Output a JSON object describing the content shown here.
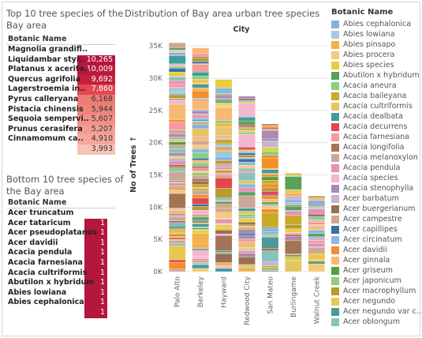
{
  "top_panel": {
    "title_line1": "Top 10 tree species of the",
    "title_line2": "Bay area",
    "column_header": "Botanic Name",
    "rows": [
      {
        "name": "Magnolia grandifl..",
        "value": "10,265",
        "color": "#b5163b",
        "text_color": "#ffffff"
      },
      {
        "name": "Liquidambar styr..",
        "value": "10,009",
        "color": "#b8193c",
        "text_color": "#ffffff"
      },
      {
        "name": "Platanus x acerifo..",
        "value": "9,692",
        "color": "#c41f3f",
        "text_color": "#ffffff"
      },
      {
        "name": "Quercus agrifolia",
        "value": "7,860",
        "color": "#e2484e",
        "text_color": "#ffffff"
      },
      {
        "name": "Lagerstroemia in..",
        "value": "6,168",
        "color": "#ee7b73",
        "text_color": "#333333"
      },
      {
        "name": "Pyrus calleryana",
        "value": "5,944",
        "color": "#f0847b",
        "text_color": "#333333"
      },
      {
        "name": "Pistacia chinensis",
        "value": "5,607",
        "color": "#f29186",
        "text_color": "#333333"
      },
      {
        "name": "Sequoia sempervi..",
        "value": "5,207",
        "color": "#f39d92",
        "text_color": "#333333"
      },
      {
        "name": "Prunus cerasifera",
        "value": "4,910",
        "color": "#f5a79c",
        "text_color": "#333333"
      },
      {
        "name": "Cinnamomum ca..",
        "value": "3,993",
        "color": "#f8c2b8",
        "text_color": "#333333"
      }
    ]
  },
  "bottom_panel": {
    "title_line1": "Bottom 10 tree species of",
    "title_line2": "the Bay area",
    "column_header": "Botanic Name",
    "cell_color": "#b5163b",
    "rows": [
      {
        "name": "Acer truncatum",
        "value": "1"
      },
      {
        "name": "Acer tataricum",
        "value": "1"
      },
      {
        "name": "Acer pseudoplatanus",
        "value": "1"
      },
      {
        "name": "Acer davidii",
        "value": "1"
      },
      {
        "name": "Acacia pendula",
        "value": "1"
      },
      {
        "name": "Acacia farnesiana",
        "value": "1"
      },
      {
        "name": "Acacia cultriformis",
        "value": "1"
      },
      {
        "name": "Abutilon x hybridum",
        "value": "1"
      },
      {
        "name": "Abies lowiana",
        "value": "1"
      },
      {
        "name": "Abies cephalonica",
        "value": "1"
      }
    ]
  },
  "chart_data": {
    "type": "bar",
    "stacked": true,
    "title": "Distribution of Bay area urban tree species",
    "column_header": "City",
    "ylabel": "No of Trees ↑",
    "ylim": [
      0,
      36000
    ],
    "yticks": [
      "0K",
      "5K",
      "10K",
      "15K",
      "20K",
      "25K",
      "30K",
      "35K"
    ],
    "categories": [
      "Palo Alto",
      "Berkeley",
      "Hayward",
      "Redwood City",
      "San Mateo",
      "Burlingame",
      "Walnut Creek"
    ],
    "values": [
      35500,
      34700,
      29800,
      27200,
      22900,
      15300,
      11700
    ],
    "grid": true
  },
  "legend": {
    "title": "Botanic Name",
    "items": [
      {
        "label": "Abies cephalonica",
        "color": "#8ab2d6"
      },
      {
        "label": "Abies lowiana",
        "color": "#a8c8e0"
      },
      {
        "label": "Abies pinsapo",
        "color": "#f4b24a"
      },
      {
        "label": "Abies procera",
        "color": "#f7c97a"
      },
      {
        "label": "Abies species",
        "color": "#e8cf3a"
      },
      {
        "label": "Abutilon x hybridum",
        "color": "#5aa05a"
      },
      {
        "label": "Acacia aneura",
        "color": "#8acf7e"
      },
      {
        "label": "Acacia baileyana",
        "color": "#c9a82a"
      },
      {
        "label": "Acacia cultriformis",
        "color": "#e4c561"
      },
      {
        "label": "Acacia dealbata",
        "color": "#3d9e9a"
      },
      {
        "label": "Acacia decurrens",
        "color": "#e3474e"
      },
      {
        "label": "Acacia farnesiana",
        "color": "#f59aa0"
      },
      {
        "label": "Acacia longifolia",
        "color": "#a57456"
      },
      {
        "label": "Acacia melanoxylon",
        "color": "#c9a89a"
      },
      {
        "label": "Acacia pendula",
        "color": "#eb8fb0"
      },
      {
        "label": "Acacia species",
        "color": "#f3b6cf"
      },
      {
        "label": "Acacia stenophylla",
        "color": "#a88ab3"
      },
      {
        "label": "Acer barbatum",
        "color": "#c8b3d1"
      },
      {
        "label": "Acer buergerianum",
        "color": "#9b6f52"
      },
      {
        "label": "Acer campestre",
        "color": "#d2a88c"
      },
      {
        "label": "Acer capillipes",
        "color": "#3b6fa9"
      },
      {
        "label": "Acer circinatum",
        "color": "#8bb7e0"
      },
      {
        "label": "Acer davidii",
        "color": "#f28e2b"
      },
      {
        "label": "Acer ginnala",
        "color": "#f7b873"
      },
      {
        "label": "Acer griseum",
        "color": "#4f9f42"
      },
      {
        "label": "Acer japonicum",
        "color": "#91cc6f"
      },
      {
        "label": "Acer macrophyllum",
        "color": "#b59c33"
      },
      {
        "label": "Acer negundo",
        "color": "#e8c84a"
      },
      {
        "label": "Acer negundo var c..",
        "color": "#4a9a95"
      },
      {
        "label": "Acer oblongum",
        "color": "#86c4bb"
      }
    ]
  }
}
